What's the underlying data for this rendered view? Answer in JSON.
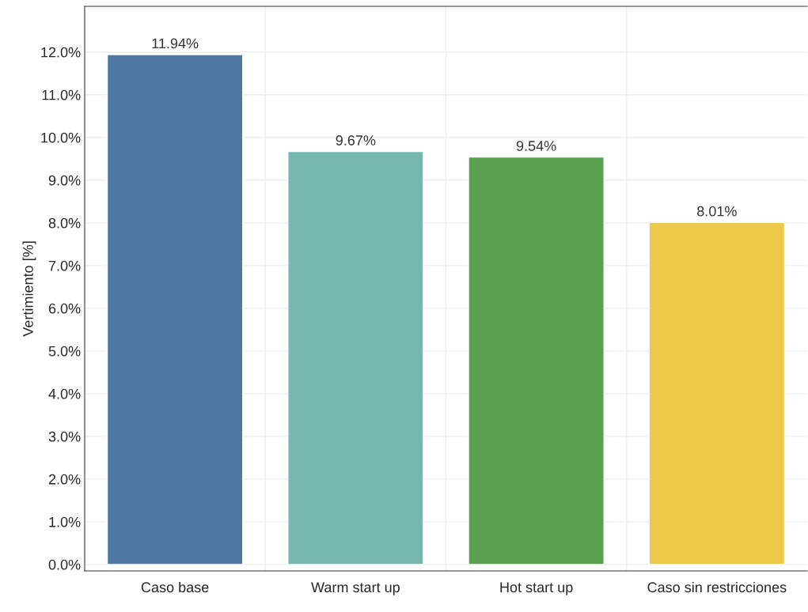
{
  "chart_data": {
    "type": "bar",
    "ylabel": "Vertimiento [%]",
    "categories": [
      "Caso base",
      "Warm start up",
      "Hot start up",
      "Caso sin restricciones"
    ],
    "values": [
      11.94,
      9.67,
      9.54,
      8.01
    ],
    "colors": [
      "#4e79a7",
      "#76b7b2",
      "#59a14f",
      "#edc948"
    ],
    "value_labels": [
      "11.94%",
      "9.67%",
      "9.54%",
      "8.01%"
    ],
    "ylim": [
      -0.15,
      13.07
    ],
    "yticks": [
      {
        "value": 0,
        "label": "0.0%"
      },
      {
        "value": 1,
        "label": "1.0%"
      },
      {
        "value": 2,
        "label": "2.0%"
      },
      {
        "value": 3,
        "label": "3.0%"
      },
      {
        "value": 4,
        "label": "4.0%"
      },
      {
        "value": 5,
        "label": "5.0%"
      },
      {
        "value": 6,
        "label": "6.0%"
      },
      {
        "value": 7,
        "label": "7.0%"
      },
      {
        "value": 8,
        "label": "8.0%"
      },
      {
        "value": 9,
        "label": "9.0%"
      },
      {
        "value": 10,
        "label": "10.0%"
      },
      {
        "value": 11,
        "label": "11.0%"
      },
      {
        "value": 12,
        "label": "12.0%"
      }
    ],
    "grid": true
  }
}
